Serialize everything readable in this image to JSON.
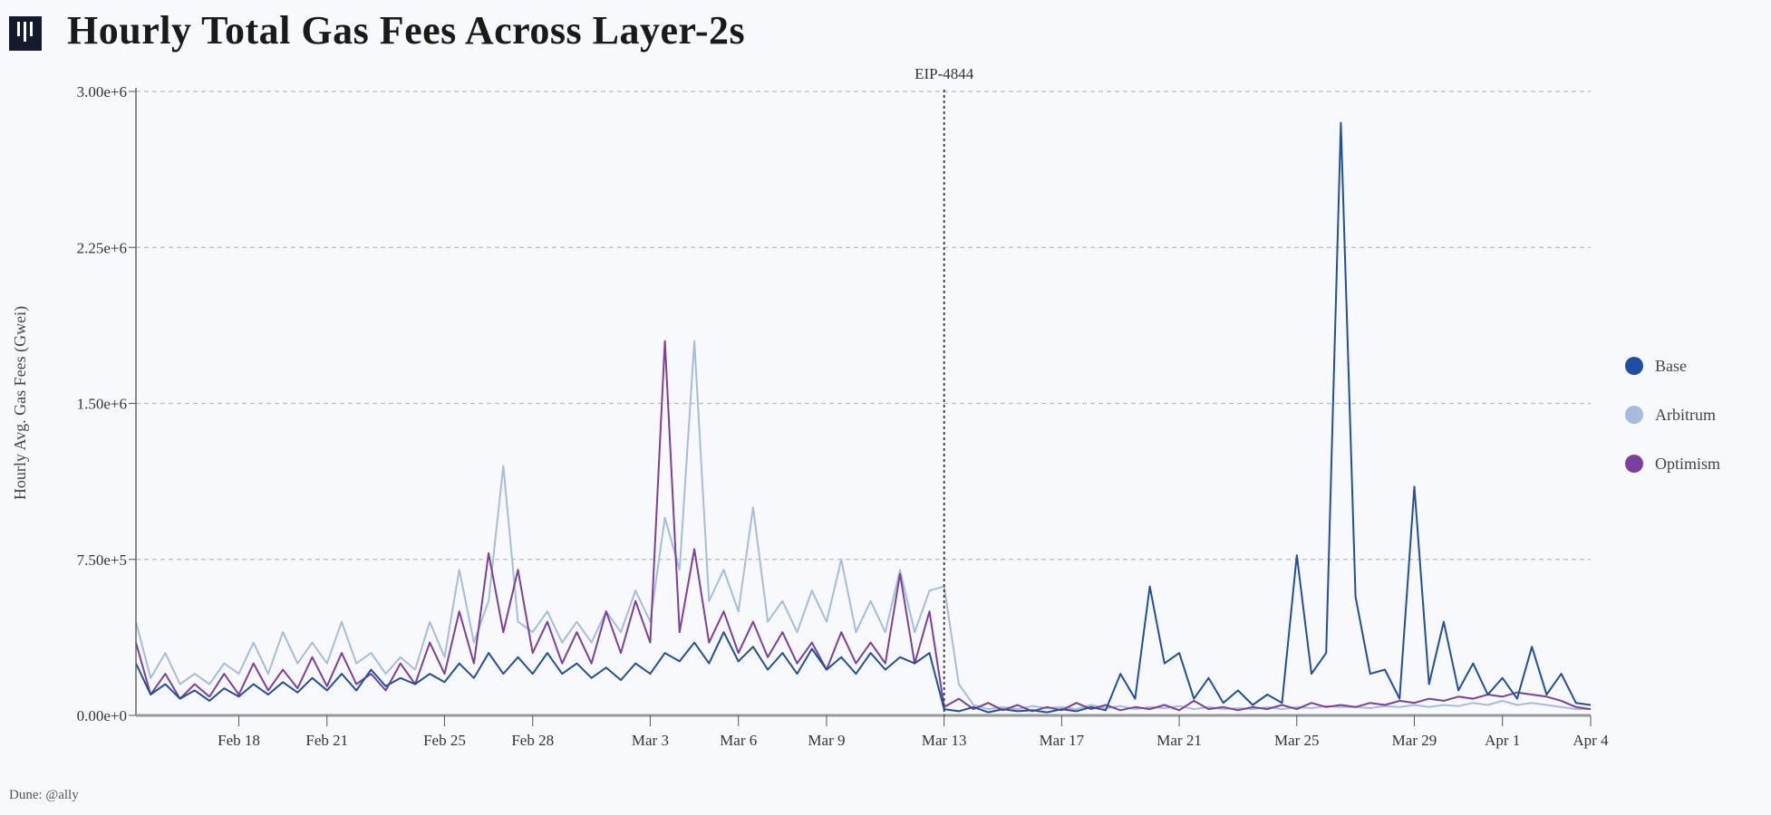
{
  "title": "Hourly Total Gas Fees Across Layer-2s",
  "credit": "Dune: @ally",
  "chart_data": {
    "type": "line",
    "title": "Hourly Total Gas Fees Across Layer-2s",
    "xlabel": "",
    "ylabel": "Hourly Avg. Gas Fees (Gwei)",
    "ylim": [
      0,
      3000000
    ],
    "xlim": [
      "2024-02-14T12",
      "2024-04-04T00"
    ],
    "yticks": [
      0,
      750000,
      1500000,
      2250000,
      3000000
    ],
    "ytick_labels": [
      "0.00e+0",
      "7.50e+5",
      "1.50e+6",
      "2.25e+6",
      "3.00e+6"
    ],
    "xticks": [
      "2024-02-18",
      "2024-02-21",
      "2024-02-25",
      "2024-02-28",
      "2024-03-03",
      "2024-03-06",
      "2024-03-09",
      "2024-03-13",
      "2024-03-17",
      "2024-03-21",
      "2024-03-25",
      "2024-03-29",
      "2024-04-01",
      "2024-04-04"
    ],
    "xtick_labels": [
      "Feb 18",
      "Feb 21",
      "Feb 25",
      "Feb 28",
      "Mar 3",
      "Mar 6",
      "Mar 9",
      "Mar 13",
      "Mar 17",
      "Mar 21",
      "Mar 25",
      "Mar 29",
      "Apr 1",
      "Apr 4"
    ],
    "grid": "horizontal dashed",
    "legend_position": "right",
    "annotation": {
      "label": "EIP-4844",
      "x": "2024-03-13T00"
    },
    "x": [
      "2024-02-14T12",
      "2024-02-15T00",
      "2024-02-15T12",
      "2024-02-16T00",
      "2024-02-16T12",
      "2024-02-17T00",
      "2024-02-17T12",
      "2024-02-18T00",
      "2024-02-18T12",
      "2024-02-19T00",
      "2024-02-19T12",
      "2024-02-20T00",
      "2024-02-20T12",
      "2024-02-21T00",
      "2024-02-21T12",
      "2024-02-22T00",
      "2024-02-22T12",
      "2024-02-23T00",
      "2024-02-23T12",
      "2024-02-24T00",
      "2024-02-24T12",
      "2024-02-25T00",
      "2024-02-25T12",
      "2024-02-26T00",
      "2024-02-26T12",
      "2024-02-27T00",
      "2024-02-27T12",
      "2024-02-28T00",
      "2024-02-28T12",
      "2024-02-29T00",
      "2024-02-29T12",
      "2024-03-01T00",
      "2024-03-01T12",
      "2024-03-02T00",
      "2024-03-02T12",
      "2024-03-03T00",
      "2024-03-03T12",
      "2024-03-04T00",
      "2024-03-04T12",
      "2024-03-05T00",
      "2024-03-05T12",
      "2024-03-06T00",
      "2024-03-06T12",
      "2024-03-07T00",
      "2024-03-07T12",
      "2024-03-08T00",
      "2024-03-08T12",
      "2024-03-09T00",
      "2024-03-09T12",
      "2024-03-10T00",
      "2024-03-10T12",
      "2024-03-11T00",
      "2024-03-11T12",
      "2024-03-12T00",
      "2024-03-12T12",
      "2024-03-13T00",
      "2024-03-13T12",
      "2024-03-14T00",
      "2024-03-14T12",
      "2024-03-15T00",
      "2024-03-15T12",
      "2024-03-16T00",
      "2024-03-16T12",
      "2024-03-17T00",
      "2024-03-17T12",
      "2024-03-18T00",
      "2024-03-18T12",
      "2024-03-19T00",
      "2024-03-19T12",
      "2024-03-20T00",
      "2024-03-20T12",
      "2024-03-21T00",
      "2024-03-21T12",
      "2024-03-22T00",
      "2024-03-22T12",
      "2024-03-23T00",
      "2024-03-23T12",
      "2024-03-24T00",
      "2024-03-24T12",
      "2024-03-25T00",
      "2024-03-25T12",
      "2024-03-26T00",
      "2024-03-26T12",
      "2024-03-27T00",
      "2024-03-27T12",
      "2024-03-28T00",
      "2024-03-28T12",
      "2024-03-29T00",
      "2024-03-29T12",
      "2024-03-30T00",
      "2024-03-30T12",
      "2024-03-31T00",
      "2024-03-31T12",
      "2024-04-01T00",
      "2024-04-01T12",
      "2024-04-02T00",
      "2024-04-02T12",
      "2024-04-03T00",
      "2024-04-03T12",
      "2024-04-04T00"
    ],
    "series": [
      {
        "name": "Arbitrum",
        "color": "#a6bcdc",
        "values": [
          450000,
          180000,
          300000,
          150000,
          200000,
          150000,
          250000,
          200000,
          350000,
          200000,
          400000,
          250000,
          350000,
          250000,
          450000,
          250000,
          300000,
          200000,
          280000,
          220000,
          450000,
          280000,
          700000,
          350000,
          550000,
          1200000,
          450000,
          400000,
          500000,
          350000,
          450000,
          350000,
          500000,
          400000,
          600000,
          450000,
          950000,
          700000,
          1800000,
          550000,
          700000,
          500000,
          1000000,
          450000,
          550000,
          400000,
          600000,
          450000,
          750000,
          400000,
          550000,
          400000,
          700000,
          400000,
          600000,
          620000,
          150000,
          50000,
          30000,
          40000,
          30000,
          45000,
          35000,
          40000,
          30000,
          50000,
          35000,
          45000,
          30000,
          40000,
          35000,
          45000,
          30000,
          40000,
          30000,
          35000,
          30000,
          40000,
          30000,
          40000,
          35000,
          45000,
          40000,
          40000,
          35000,
          45000,
          40000,
          50000,
          40000,
          50000,
          45000,
          60000,
          50000,
          70000,
          50000,
          60000,
          50000,
          40000,
          30000,
          30000
        ]
      },
      {
        "name": "Optimism",
        "color": "#7b3fa0",
        "values": [
          350000,
          100000,
          200000,
          80000,
          150000,
          90000,
          200000,
          100000,
          250000,
          120000,
          220000,
          130000,
          280000,
          140000,
          300000,
          150000,
          200000,
          120000,
          250000,
          150000,
          350000,
          200000,
          500000,
          250000,
          780000,
          400000,
          700000,
          300000,
          450000,
          250000,
          400000,
          250000,
          500000,
          300000,
          550000,
          350000,
          1800000,
          400000,
          800000,
          350000,
          500000,
          300000,
          450000,
          280000,
          400000,
          250000,
          350000,
          220000,
          400000,
          250000,
          350000,
          250000,
          680000,
          250000,
          500000,
          40000,
          80000,
          30000,
          60000,
          25000,
          50000,
          20000,
          40000,
          25000,
          60000,
          30000,
          50000,
          25000,
          40000,
          30000,
          50000,
          25000,
          70000,
          30000,
          40000,
          25000,
          40000,
          30000,
          50000,
          30000,
          60000,
          40000,
          50000,
          40000,
          60000,
          50000,
          70000,
          60000,
          80000,
          70000,
          90000,
          80000,
          100000,
          90000,
          110000,
          100000,
          90000,
          70000,
          40000,
          30000
        ]
      },
      {
        "name": "Base",
        "color": "#1f4fa0",
        "values": [
          250000,
          100000,
          150000,
          80000,
          120000,
          70000,
          130000,
          90000,
          150000,
          100000,
          160000,
          110000,
          180000,
          120000,
          200000,
          120000,
          220000,
          140000,
          180000,
          150000,
          200000,
          160000,
          250000,
          180000,
          300000,
          200000,
          280000,
          200000,
          300000,
          200000,
          250000,
          180000,
          230000,
          170000,
          250000,
          200000,
          300000,
          260000,
          350000,
          250000,
          400000,
          260000,
          330000,
          220000,
          300000,
          200000,
          320000,
          220000,
          280000,
          200000,
          300000,
          220000,
          280000,
          250000,
          300000,
          30000,
          20000,
          40000,
          15000,
          30000,
          20000,
          25000,
          15000,
          30000,
          20000,
          40000,
          25000,
          200000,
          80000,
          620000,
          250000,
          300000,
          80000,
          180000,
          60000,
          120000,
          50000,
          100000,
          60000,
          770000,
          200000,
          300000,
          2850000,
          570000,
          200000,
          220000,
          80000,
          1100000,
          150000,
          450000,
          120000,
          250000,
          100000,
          180000,
          80000,
          330000,
          100000,
          200000,
          60000,
          50000
        ]
      }
    ]
  }
}
